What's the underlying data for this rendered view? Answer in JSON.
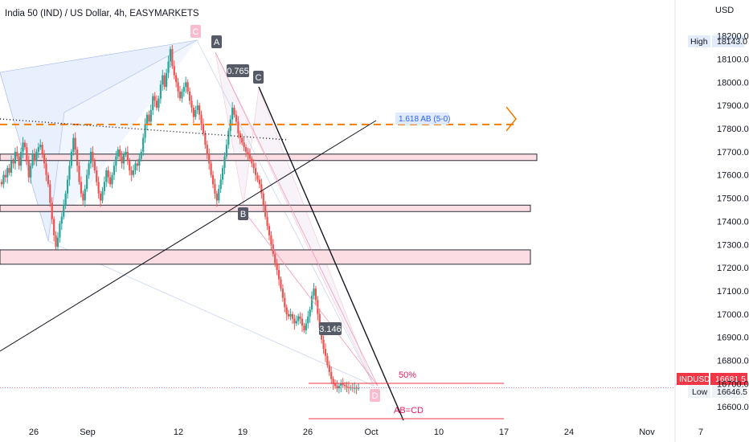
{
  "header": {
    "symbol_title": "India 50 (IND) / US Dollar, 4h, EASYMARKETS",
    "currency": "USD"
  },
  "colors": {
    "up": "#26a69a",
    "down": "#ef5350",
    "zone_fill": "#fbdde3",
    "pattern_fill": "#d6e2fb",
    "fib_line": "#f57c00",
    "label_bg": "#555a66",
    "price_tag": "#f23645",
    "pink_text": "#e91e63"
  },
  "chart_data": {
    "type": "candlestick",
    "title": "India 50 (IND) / US Dollar, 4h, EASYMARKETS",
    "ylabel": "USD",
    "ylim": [
      16520,
      18330
    ],
    "x_ticks": [
      "26",
      "Sep",
      "12",
      "19",
      "26",
      "Oct",
      "10",
      "17",
      "24",
      "Nov",
      "7"
    ],
    "y_ticks": [
      "16600.0",
      "16700.0",
      "16800.0",
      "16900.0",
      "17000.0",
      "17100.0",
      "17200.0",
      "17300.0",
      "17400.0",
      "17500.0",
      "17600.0",
      "17700.0",
      "17800.0",
      "17900.0",
      "18000.0",
      "18100.0",
      "18200.0"
    ],
    "grid": false,
    "legend": "none",
    "high_label": "High",
    "high_value": "18143.0",
    "last_symbol": "INDUSD",
    "last_value": "16681.5",
    "low_label": "Low",
    "low_value": "16646.5",
    "resistance_line": 17818,
    "support_zones": [
      {
        "top": 17690,
        "bottom": 17670
      },
      {
        "top": 17470,
        "bottom": 17450
      },
      {
        "top": 17277,
        "bottom": 17215
      }
    ],
    "annotations": {
      "point_a": "A",
      "point_b": "B",
      "point_c": "C",
      "point_c_pink": "C",
      "point_d_pink": "D",
      "ratio_ab": "0.765",
      "ratio_bc": "3.146",
      "fib_ext": "1.618 AB (5-0)",
      "pct": "50%",
      "abcd": "AB=CD"
    },
    "candle_count": 185,
    "candles_close": [
      17560,
      17600,
      17590,
      17630,
      17610,
      17660,
      17650,
      17700,
      17680,
      17640,
      17700,
      17740,
      17720,
      17660,
      17590,
      17640,
      17690,
      17660,
      17700,
      17720,
      17730,
      17690,
      17650,
      17600,
      17560,
      17480,
      17410,
      17340,
      17290,
      17330,
      17390,
      17420,
      17470,
      17520,
      17580,
      17640,
      17700,
      17760,
      17710,
      17640,
      17570,
      17520,
      17490,
      17540,
      17600,
      17650,
      17700,
      17660,
      17620,
      17570,
      17520,
      17490,
      17530,
      17570,
      17620,
      17590,
      17560,
      17600,
      17640,
      17680,
      17710,
      17680,
      17650,
      17690,
      17700,
      17660,
      17620,
      17600,
      17620,
      17650,
      17640,
      17670,
      17700,
      17760,
      17820,
      17860,
      17830,
      17880,
      17940,
      17920,
      17890,
      17930,
      17990,
      18030,
      17980,
      18040,
      18090,
      18143,
      18070,
      18030,
      18000,
      17960,
      17930,
      17960,
      17980,
      18000,
      17960,
      17920,
      17890,
      17850,
      17880,
      17900,
      17860,
      17820,
      17780,
      17730,
      17690,
      17650,
      17600,
      17560,
      17520,
      17490,
      17540,
      17580,
      17630,
      17680,
      17730,
      17790,
      17840,
      17890,
      17860,
      17830,
      17780,
      17760,
      17740,
      17720,
      17700,
      17690,
      17670,
      17650,
      17630,
      17600,
      17580,
      17560,
      17520,
      17470,
      17420,
      17380,
      17340,
      17300,
      17260,
      17220,
      17190,
      17150,
      17110,
      17070,
      17030,
      17000,
      16990,
      17000,
      16980,
      16960,
      16970,
      16990,
      16980,
      16950,
      16930,
      16960,
      16990,
      17020,
      17080,
      17110,
      17060,
      17000,
      16940,
      16890,
      16850,
      16820,
      16780,
      16750,
      16720,
      16700,
      16690,
      16680,
      16690,
      16700,
      16695,
      16690,
      16685,
      16682,
      16683,
      16681,
      16682,
      16681.5,
      16681.5
    ]
  }
}
